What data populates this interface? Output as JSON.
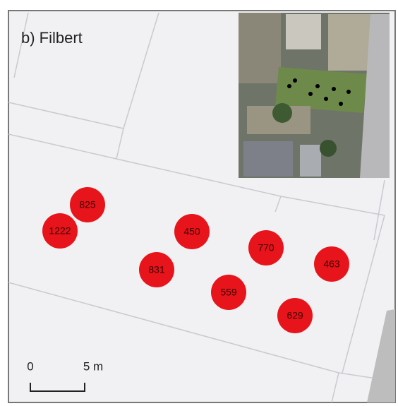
{
  "title": "b) Filbert",
  "markers": [
    {
      "label": "825"
    },
    {
      "label": "1222"
    },
    {
      "label": "450"
    },
    {
      "label": "770"
    },
    {
      "label": "831"
    },
    {
      "label": "559"
    },
    {
      "label": "463"
    },
    {
      "label": "629"
    }
  ],
  "scale_bar": {
    "start_label": "0",
    "end_label": "5 m"
  }
}
